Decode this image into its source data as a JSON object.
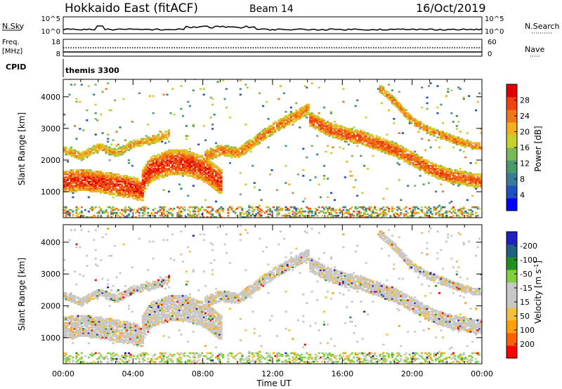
{
  "header": {
    "title": "Hokkaido East (fitACF)",
    "beam": "Beam 14",
    "date": "16/Oct/2019"
  },
  "sky_panel": {
    "label": "N.Sky",
    "left_ticks": [
      "10^5",
      "10^0"
    ],
    "right_ticks": [
      "10^5",
      "10^0"
    ],
    "right_label": "N.Search"
  },
  "freq_panel": {
    "label_line1": "Freq.",
    "label_line2": "[MHz]",
    "left_ticks": [
      "18",
      "8"
    ],
    "right_ticks": [
      "60",
      "0"
    ],
    "right_label": "Nave"
  },
  "cpid_panel": {
    "label": "CPID",
    "value": "themis 3300"
  },
  "colors": {
    "power_scale": [
      "#0000ff",
      "#2050c0",
      "#3a7a9a",
      "#4a9a6a",
      "#78b858",
      "#c8d030",
      "#f0b020",
      "#f07818",
      "#f04010",
      "#e00000"
    ],
    "velocity_scale": [
      "#ff0000",
      "#ff6000",
      "#ffa000",
      "#f0c040",
      "#c8c8c8",
      "#c8c8c8",
      "#80d040",
      "#209020",
      "#206080",
      "#2020c0"
    ]
  },
  "chart_data": [
    {
      "type": "heatmap",
      "panel": "power",
      "ylabel": "Slant Range [km]",
      "xlabel": "",
      "xlim": [
        "00:00",
        "24:00"
      ],
      "ylim": [
        180,
        4550
      ],
      "ytick_values": [
        1000,
        2000,
        3000,
        4000
      ],
      "ytick_labels": [
        "1000",
        "2000",
        "3000",
        "4000"
      ],
      "colorbar": {
        "label": "Power [dB]",
        "range": [
          0,
          32
        ],
        "tick_values": [
          4,
          8,
          12,
          16,
          20,
          24,
          28
        ],
        "tick_labels": [
          "4",
          "8",
          "12",
          "16",
          "20",
          "24",
          "28"
        ]
      },
      "echo_bands": [
        {
          "hours": [
            0,
            1,
            2,
            3,
            4,
            4.5
          ],
          "center_km": [
            1300,
            1350,
            1300,
            1200,
            1100,
            1000
          ],
          "width_km": 700,
          "power_db": 28
        },
        {
          "hours": [
            4.5,
            5,
            6,
            7,
            8,
            9
          ],
          "center_km": [
            1300,
            1700,
            1900,
            1900,
            1700,
            1300
          ],
          "width_km": 800,
          "power_db": 28
        },
        {
          "hours": [
            0,
            1,
            2,
            3,
            4,
            5,
            6
          ],
          "center_km": [
            2300,
            2100,
            2400,
            2200,
            2500,
            2600,
            2800
          ],
          "width_km": 250,
          "power_db": 22
        },
        {
          "hours": [
            8,
            9,
            10,
            11,
            12,
            13,
            14
          ],
          "center_km": [
            2100,
            2300,
            2200,
            2600,
            3000,
            3300,
            3600
          ],
          "width_km": 350,
          "power_db": 24
        },
        {
          "hours": [
            14,
            15,
            16,
            17,
            18,
            19,
            20,
            21,
            22,
            23,
            24
          ],
          "center_km": [
            3300,
            3000,
            2800,
            2700,
            2500,
            2300,
            2000,
            1700,
            1500,
            1400,
            1300
          ],
          "width_km": 450,
          "power_db": 26
        },
        {
          "hours": [
            18,
            19,
            20,
            21,
            22,
            23,
            24
          ],
          "center_km": [
            4300,
            3800,
            3200,
            2900,
            2700,
            2500,
            2400
          ],
          "width_km": 250,
          "power_db": 24
        }
      ]
    },
    {
      "type": "heatmap",
      "panel": "velocity",
      "ylabel": "Slant Range [km]",
      "xlabel": "Time UT",
      "xlim": [
        "00:00",
        "24:00"
      ],
      "ylim": [
        180,
        4550
      ],
      "ytick_values": [
        1000,
        2000,
        3000,
        4000
      ],
      "ytick_labels": [
        "1000",
        "2000",
        "3000",
        "4000"
      ],
      "xtick_values": [
        0,
        4,
        8,
        12,
        16,
        20,
        24
      ],
      "xtick_labels": [
        "00:00",
        "04:00",
        "08:00",
        "12:00",
        "16:00",
        "20:00",
        "00:00"
      ],
      "colorbar": {
        "label": "Velocity [m s",
        "label_superscript": "-1",
        "label_end": "]",
        "range": [
          -250,
          250
        ],
        "tick_labels": [
          "-200",
          "-100",
          "-50",
          "-15",
          "15",
          "50",
          "100",
          "200"
        ]
      }
    }
  ]
}
